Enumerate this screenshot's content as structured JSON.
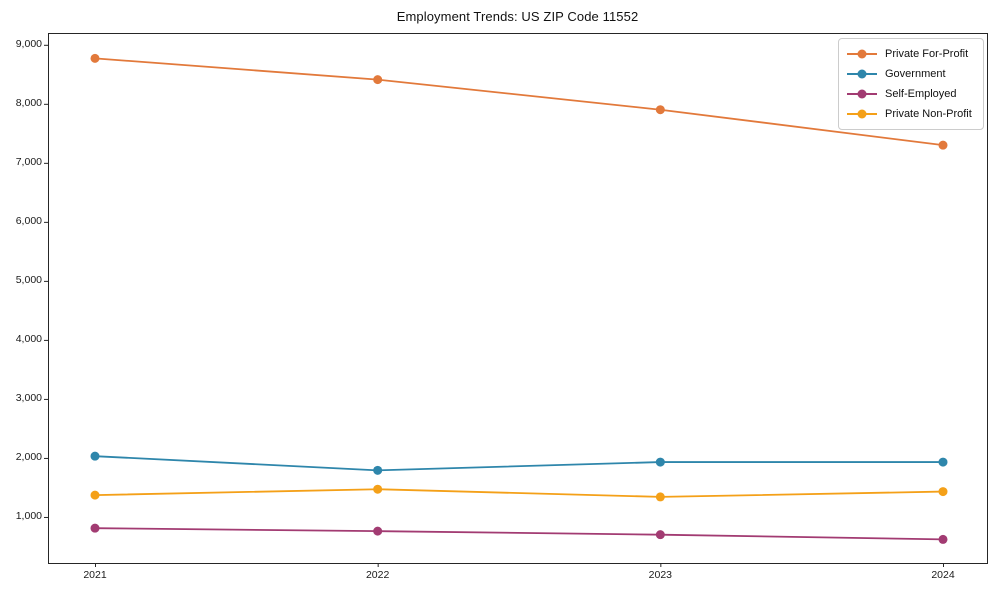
{
  "chart_data": {
    "type": "line",
    "title": "Employment Trends: US ZIP Code 11552",
    "xlabel": "",
    "ylabel": "",
    "x": [
      2021,
      2022,
      2023,
      2024
    ],
    "x_tick_labels": [
      "2021",
      "2022",
      "2023",
      "2024"
    ],
    "y_ticks": [
      1000,
      2000,
      3000,
      4000,
      5000,
      6000,
      7000,
      8000,
      9000
    ],
    "y_tick_labels": [
      "1,000",
      "2,000",
      "3,000",
      "4,000",
      "5,000",
      "6,000",
      "7,000",
      "8,000",
      "9,000"
    ],
    "ylim": [
      220,
      9200
    ],
    "grid": false,
    "legend_position": "upper-right",
    "marker": "circle",
    "series": [
      {
        "name": "Private For-Profit",
        "color": "#E2793B",
        "values": [
          8770,
          8410,
          7900,
          7300
        ]
      },
      {
        "name": "Government",
        "color": "#2E86AB",
        "values": [
          2030,
          1790,
          1930,
          1930
        ]
      },
      {
        "name": "Self-Employed",
        "color": "#A23B72",
        "values": [
          810,
          760,
          700,
          620
        ]
      },
      {
        "name": "Private Non-Profit",
        "color": "#F4A018",
        "values": [
          1370,
          1470,
          1340,
          1430
        ]
      }
    ],
    "spine_color": "#262626",
    "tick_color": "#262626",
    "background_color": "#ffffff"
  }
}
